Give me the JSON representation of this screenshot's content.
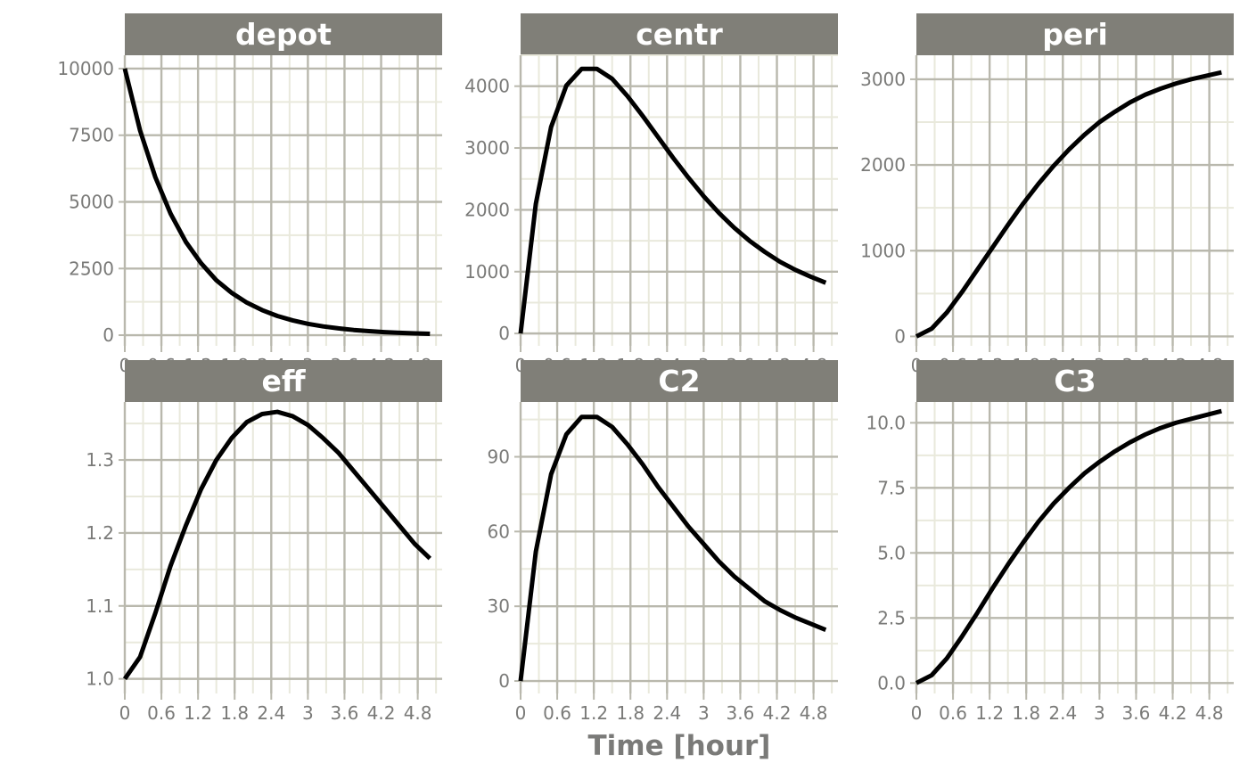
{
  "chart_data": {
    "type": "line",
    "layout": "facet-grid",
    "nrow": 2,
    "ncol": 3,
    "xlabel": "Time [hour]",
    "ylabel": "",
    "xlim": [
      0,
      5.2
    ],
    "x_ticks": [
      0,
      0.6,
      1.2,
      1.8,
      2.4,
      3,
      3.6,
      4.2,
      4.8
    ],
    "x_tick_labels": [
      "0",
      "0.6",
      "1.2",
      "1.8",
      "2.4",
      "3",
      "3.6",
      "4.2",
      "4.8"
    ],
    "x": [
      0,
      0.25,
      0.5,
      0.75,
      1,
      1.25,
      1.5,
      1.75,
      2,
      2.25,
      2.5,
      2.75,
      3,
      3.25,
      3.5,
      3.75,
      4,
      4.25,
      4.5,
      4.75,
      5
    ],
    "line_color": "#000000",
    "strip_color": "#807f78",
    "grid": true,
    "panels": [
      {
        "title": "depot",
        "ylim": [
          -400,
          10500
        ],
        "y_ticks": [
          0,
          2500,
          5000,
          7500,
          10000
        ],
        "y_tick_labels": [
          "0",
          "2500",
          "5000",
          "7500",
          "10000"
        ],
        "values": [
          10000,
          7680,
          5930,
          4560,
          3500,
          2700,
          2060,
          1590,
          1220,
          940,
          720,
          555,
          425,
          330,
          255,
          195,
          150,
          115,
          90,
          70,
          50
        ]
      },
      {
        "title": "centr",
        "ylim": [
          -200,
          4500
        ],
        "y_ticks": [
          0,
          1000,
          2000,
          3000,
          4000
        ],
        "y_tick_labels": [
          "0",
          "1000",
          "2000",
          "3000",
          "4000"
        ],
        "values": [
          0,
          2100,
          3340,
          4010,
          4280,
          4280,
          4120,
          3840,
          3520,
          3180,
          2840,
          2520,
          2220,
          1950,
          1710,
          1500,
          1320,
          1160,
          1030,
          920,
          820
        ]
      },
      {
        "title": "peri",
        "ylim": [
          -110,
          3280
        ],
        "y_ticks": [
          0,
          1000,
          2000,
          3000
        ],
        "y_tick_labels": [
          "0",
          "1000",
          "2000",
          "3000"
        ],
        "values": [
          0,
          90,
          280,
          520,
          780,
          1040,
          1300,
          1550,
          1780,
          1990,
          2180,
          2350,
          2500,
          2620,
          2730,
          2820,
          2890,
          2950,
          3000,
          3040,
          3080
        ]
      },
      {
        "title": "eff",
        "ylim": [
          0.98,
          1.3795
        ],
        "y_ticks": [
          1.0,
          1.1,
          1.2,
          1.3
        ],
        "y_tick_labels": [
          "1.0",
          "1.1",
          "1.2",
          "1.3"
        ],
        "values": [
          1.0,
          1.03,
          1.09,
          1.155,
          1.21,
          1.26,
          1.3,
          1.33,
          1.352,
          1.363,
          1.366,
          1.36,
          1.348,
          1.33,
          1.31,
          1.285,
          1.26,
          1.235,
          1.21,
          1.185,
          1.165
        ]
      },
      {
        "title": "C2",
        "ylim": [
          -5,
          112
        ],
        "y_ticks": [
          0,
          30,
          60,
          90
        ],
        "y_tick_labels": [
          "0",
          "30",
          "60",
          "90"
        ],
        "values": [
          0,
          52,
          83,
          99,
          106,
          106,
          102,
          95,
          87,
          78,
          70,
          62,
          55,
          48,
          42,
          37,
          32,
          28.5,
          25.5,
          23,
          20.5
        ]
      },
      {
        "title": "C3",
        "ylim": [
          -0.4,
          10.8
        ],
        "y_ticks": [
          0.0,
          2.5,
          5.0,
          7.5,
          10.0
        ],
        "y_tick_labels": [
          "0.0",
          "2.5",
          "5.0",
          "7.5",
          "10.0"
        ],
        "values": [
          0,
          0.3,
          0.95,
          1.8,
          2.7,
          3.65,
          4.55,
          5.4,
          6.2,
          6.9,
          7.5,
          8.05,
          8.5,
          8.9,
          9.25,
          9.55,
          9.8,
          10.0,
          10.15,
          10.3,
          10.45
        ]
      }
    ]
  }
}
